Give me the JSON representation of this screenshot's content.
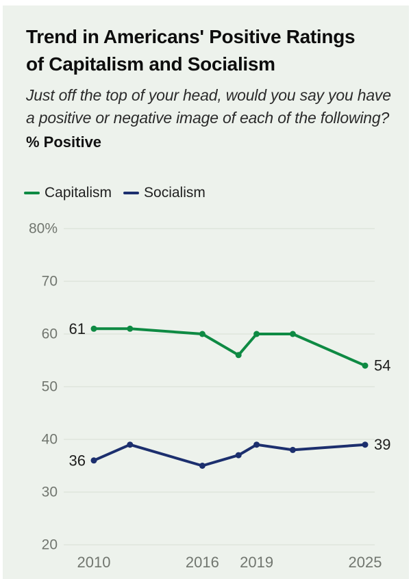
{
  "header": {
    "title_line1": "Trend in Americans' Positive Ratings",
    "title_line2": "of Capitalism and Socialism",
    "subtitle": "Just off the top of your head, would you say you have a positive or negative image of each of the following?",
    "metric_label": "% Positive"
  },
  "legend": {
    "items": [
      {
        "label": "Capitalism",
        "color": "#0e8a43"
      },
      {
        "label": "Socialism",
        "color": "#1c2f6e"
      }
    ]
  },
  "chart_data": {
    "type": "line",
    "title": "Trend in Americans' Positive Ratings of Capitalism and Socialism",
    "xlabel": "",
    "ylabel": "% Positive",
    "x": [
      2010,
      2012,
      2016,
      2018,
      2019,
      2021,
      2025
    ],
    "series": [
      {
        "name": "Capitalism",
        "color": "#0e8a43",
        "values": [
          61,
          61,
          60,
          56,
          60,
          60,
          54
        ],
        "first_point_label": "61",
        "last_point_label": "54"
      },
      {
        "name": "Socialism",
        "color": "#1c2f6e",
        "values": [
          36,
          39,
          35,
          37,
          39,
          38,
          39
        ],
        "first_point_label": "36",
        "last_point_label": "39"
      }
    ],
    "xlim": [
      2010,
      2025
    ],
    "ylim": [
      20,
      80
    ],
    "y_ticks": [
      {
        "value": 80,
        "label": "80%"
      },
      {
        "value": 70,
        "label": "70"
      },
      {
        "value": 60,
        "label": "60"
      },
      {
        "value": 50,
        "label": "50"
      },
      {
        "value": 40,
        "label": "40"
      },
      {
        "value": 30,
        "label": "30"
      },
      {
        "value": 20,
        "label": "20"
      }
    ],
    "x_ticks": [
      {
        "value": 2010,
        "label": "2010"
      },
      {
        "value": 2016,
        "label": "2016"
      },
      {
        "value": 2019,
        "label": "2019"
      },
      {
        "value": 2025,
        "label": "2025"
      }
    ],
    "grid": true,
    "legend_position": "top-left"
  },
  "colors": {
    "background": "#edf2ec",
    "frame": "#ffffff",
    "gridline": "#dce1d8",
    "axis_text": "#71766f",
    "value_label_text": "#1d1d1c",
    "capitalism_green": "#0e8a43",
    "socialism_navy": "#1c2f6e"
  }
}
